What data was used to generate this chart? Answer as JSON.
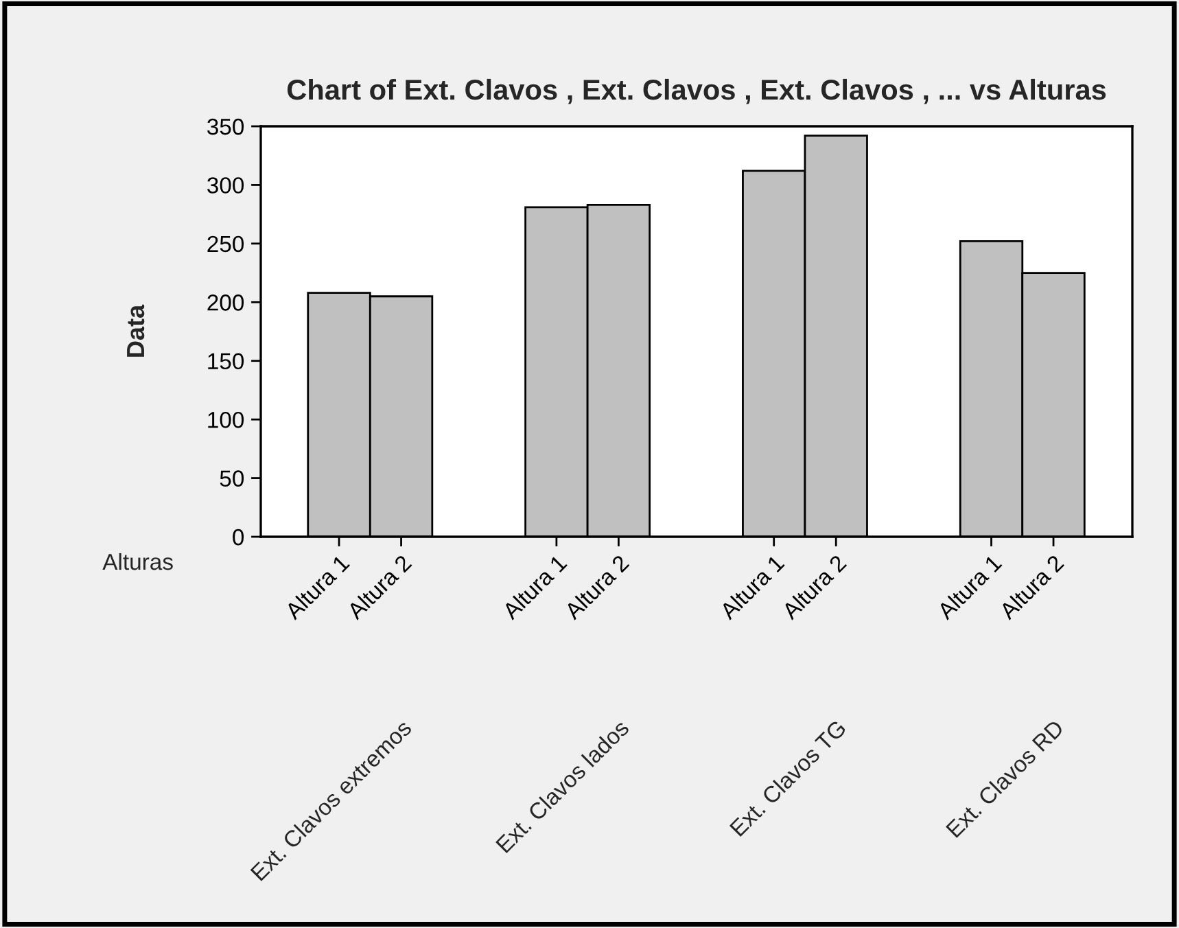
{
  "chart_data": {
    "type": "bar",
    "title": "Chart of Ext. Clavos , Ext. Clavos , Ext. Clavos , ... vs Alturas",
    "ylabel": "Data",
    "categories": [
      "Altura 1",
      "Altura 2",
      "Altura 1",
      "Altura 2",
      "Altura 1",
      "Altura 2",
      "Altura 1",
      "Altura 2"
    ],
    "values": [
      208,
      205,
      281,
      283,
      312,
      342,
      252,
      225
    ],
    "color": "#c0c0c0",
    "annotations": [
      "Alturas",
      "Ext. Clavos extremos",
      "Ext. Clavos lados",
      "Ext. Clavos TG",
      "Ext. Clavos RD"
    ],
    "ylim": [
      0,
      350
    ],
    "yticks": [
      0,
      50,
      100,
      150,
      200,
      250,
      300,
      350
    ],
    "grid": false,
    "legend": false
  }
}
